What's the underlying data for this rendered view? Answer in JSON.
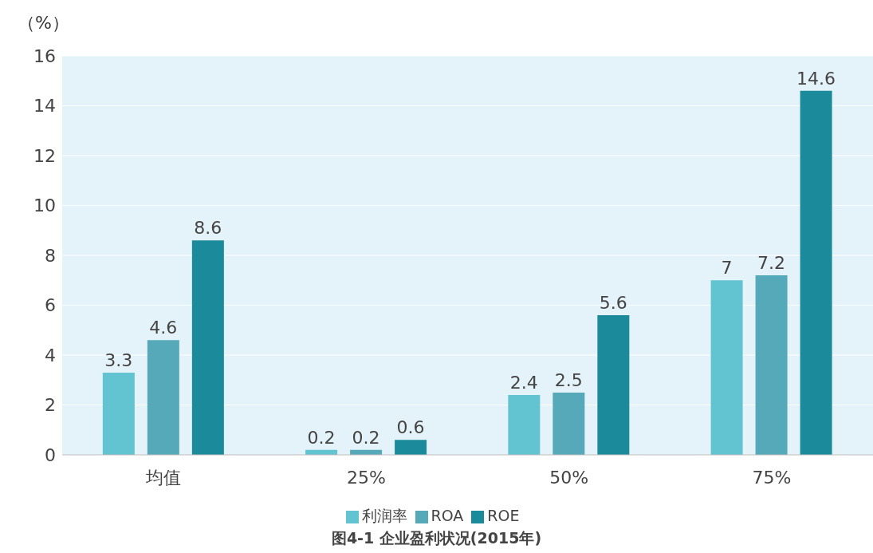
{
  "chart_data": {
    "type": "bar",
    "title": "图4-1 企业盈利状况(2015年)",
    "ylabel": "（%）",
    "categories": [
      "均值",
      "25%",
      "50%",
      "75%"
    ],
    "series": [
      {
        "name": "利润率",
        "color": "#62c3d1",
        "values": [
          3.3,
          0.2,
          2.4,
          7
        ]
      },
      {
        "name": "ROA",
        "color": "#56a9b8",
        "values": [
          4.6,
          0.2,
          2.5,
          7.2
        ]
      },
      {
        "name": "ROE",
        "color": "#1b8a9a",
        "values": [
          8.6,
          0.6,
          5.6,
          14.6
        ]
      }
    ],
    "ylim": [
      0,
      16
    ],
    "yticks": [
      0,
      2,
      4,
      6,
      8,
      10,
      12,
      14,
      16
    ],
    "grid": "y",
    "legend": "bottom",
    "data_labels": true
  }
}
